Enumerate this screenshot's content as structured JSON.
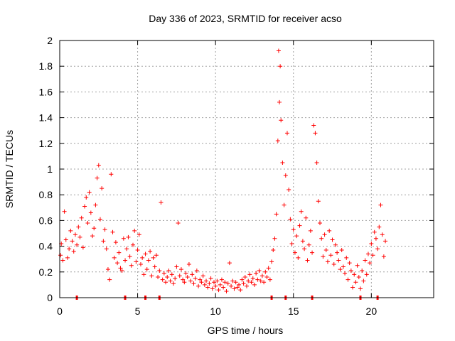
{
  "chart_data": {
    "type": "scatter",
    "title": "Day 336 of 2023, SRMTID for receiver acso",
    "xlabel": "GPS time / hours",
    "ylabel": "SRMTID / TECUs",
    "xlim": [
      0,
      24
    ],
    "ylim": [
      0,
      2
    ],
    "x_ticks": [
      0,
      5,
      10,
      15,
      20
    ],
    "x_tick_labels": [
      "0",
      "5",
      "10",
      "15",
      "20"
    ],
    "y_ticks": [
      0,
      0.2,
      0.4,
      0.6,
      0.8,
      1,
      1.2,
      1.4,
      1.6,
      1.8,
      2
    ],
    "y_tick_labels": [
      "0",
      "0.2",
      "0.4",
      "0.6",
      "0.8",
      "1",
      "1.2",
      "1.4",
      "1.6",
      "1.8",
      "2"
    ],
    "grid": true,
    "marker": "plus",
    "marker_color": "#ff0000",
    "series": [
      {
        "name": "SRMTID",
        "x": [
          0.05,
          0.1,
          0.2,
          0.3,
          0.4,
          0.5,
          0.6,
          0.7,
          0.8,
          0.9,
          1.0,
          1.1,
          1.2,
          1.3,
          1.4,
          1.5,
          1.6,
          1.7,
          1.8,
          1.9,
          2.0,
          2.1,
          2.2,
          2.3,
          2.4,
          2.5,
          2.6,
          2.7,
          2.8,
          2.9,
          3.0,
          3.1,
          3.2,
          3.3,
          3.4,
          3.5,
          3.6,
          3.7,
          3.8,
          3.9,
          4.0,
          4.1,
          4.2,
          4.3,
          4.4,
          4.5,
          4.6,
          4.7,
          4.8,
          4.9,
          5.0,
          5.1,
          5.2,
          5.3,
          5.4,
          5.5,
          5.6,
          5.7,
          5.8,
          5.9,
          6.0,
          6.1,
          6.2,
          6.3,
          6.4,
          6.5,
          6.6,
          6.7,
          6.8,
          6.9,
          7.0,
          7.1,
          7.2,
          7.3,
          7.4,
          7.5,
          7.6,
          7.7,
          7.8,
          7.9,
          8.0,
          8.1,
          8.2,
          8.3,
          8.4,
          8.5,
          8.6,
          8.7,
          8.8,
          8.9,
          9.0,
          9.1,
          9.2,
          9.3,
          9.4,
          9.5,
          9.6,
          9.7,
          9.8,
          9.9,
          10.0,
          10.1,
          10.2,
          10.3,
          10.4,
          10.5,
          10.6,
          10.7,
          10.8,
          10.9,
          11.0,
          11.1,
          11.2,
          11.3,
          11.4,
          11.5,
          11.6,
          11.7,
          11.8,
          11.9,
          12.0,
          12.1,
          12.2,
          12.3,
          12.4,
          12.5,
          12.6,
          12.7,
          12.8,
          12.9,
          13.0,
          13.1,
          13.2,
          13.3,
          13.4,
          13.5,
          13.6,
          13.7,
          13.8,
          13.9,
          14.0,
          14.05,
          14.1,
          14.15,
          14.2,
          14.3,
          14.4,
          14.5,
          14.6,
          14.7,
          14.8,
          14.9,
          15.0,
          15.1,
          15.2,
          15.3,
          15.4,
          15.5,
          15.6,
          15.7,
          15.8,
          15.9,
          16.0,
          16.1,
          16.2,
          16.3,
          16.4,
          16.5,
          16.6,
          16.7,
          16.8,
          16.9,
          17.0,
          17.1,
          17.2,
          17.3,
          17.4,
          17.5,
          17.6,
          17.7,
          17.8,
          17.9,
          18.0,
          18.1,
          18.2,
          18.3,
          18.4,
          18.5,
          18.6,
          18.7,
          18.8,
          18.9,
          19.0,
          19.1,
          19.2,
          19.3,
          19.4,
          19.5,
          19.6,
          19.7,
          19.8,
          19.9,
          20.0,
          20.1,
          20.2,
          20.3,
          20.4,
          20.5,
          20.6,
          20.7,
          20.8,
          20.9
        ],
        "y": [
          0.33,
          0.42,
          0.29,
          0.67,
          0.45,
          0.31,
          0.38,
          0.52,
          0.44,
          0.36,
          0.49,
          0.41,
          0.55,
          0.47,
          0.62,
          0.39,
          0.71,
          0.78,
          0.58,
          0.82,
          0.66,
          0.48,
          0.54,
          0.72,
          0.93,
          1.03,
          0.61,
          0.85,
          0.44,
          0.53,
          0.38,
          0.22,
          0.14,
          0.96,
          0.51,
          0.31,
          0.43,
          0.27,
          0.35,
          0.23,
          0.21,
          0.46,
          0.29,
          0.38,
          0.47,
          0.32,
          0.25,
          0.41,
          0.52,
          0.28,
          0.37,
          0.49,
          0.26,
          0.31,
          0.18,
          0.34,
          0.22,
          0.29,
          0.36,
          0.17,
          0.31,
          0.24,
          0.33,
          0.16,
          0.21,
          0.74,
          0.14,
          0.19,
          0.12,
          0.16,
          0.21,
          0.13,
          0.18,
          0.11,
          0.15,
          0.24,
          0.58,
          0.17,
          0.22,
          0.14,
          0.12,
          0.19,
          0.16,
          0.26,
          0.13,
          0.18,
          0.11,
          0.15,
          0.21,
          0.09,
          0.14,
          0.12,
          0.17,
          0.1,
          0.13,
          0.08,
          0.11,
          0.15,
          0.07,
          0.12,
          0.09,
          0.13,
          0.06,
          0.1,
          0.14,
          0.08,
          0.12,
          0.05,
          0.11,
          0.27,
          0.09,
          0.13,
          0.07,
          0.12,
          0.08,
          0.1,
          0.06,
          0.14,
          0.11,
          0.16,
          0.09,
          0.13,
          0.18,
          0.12,
          0.15,
          0.1,
          0.19,
          0.14,
          0.21,
          0.13,
          0.17,
          0.12,
          0.2,
          0.16,
          0.23,
          0.14,
          0.28,
          0.37,
          0.46,
          0.65,
          1.22,
          1.92,
          1.52,
          1.8,
          1.38,
          1.05,
          0.72,
          0.95,
          1.28,
          0.84,
          0.61,
          0.42,
          0.53,
          0.35,
          0.48,
          0.31,
          0.56,
          0.67,
          0.44,
          0.38,
          0.62,
          0.29,
          0.41,
          0.52,
          0.35,
          1.34,
          1.28,
          1.05,
          0.75,
          0.58,
          0.46,
          0.32,
          0.49,
          0.37,
          0.28,
          0.52,
          0.33,
          0.45,
          0.26,
          0.41,
          0.35,
          0.29,
          0.22,
          0.37,
          0.24,
          0.19,
          0.31,
          0.14,
          0.27,
          0.21,
          0.08,
          0.18,
          0.12,
          0.25,
          0.16,
          0.07,
          0.21,
          0.13,
          0.29,
          0.18,
          0.34,
          0.27,
          0.42,
          0.33,
          0.51,
          0.46,
          0.38,
          0.55,
          0.72,
          0.49,
          0.32,
          0.44
        ]
      }
    ],
    "bottom_markers_x": [
      1.1,
      4.2,
      5.5,
      6.4,
      13.6,
      14.5,
      16.2,
      19.3,
      20.4
    ]
  }
}
